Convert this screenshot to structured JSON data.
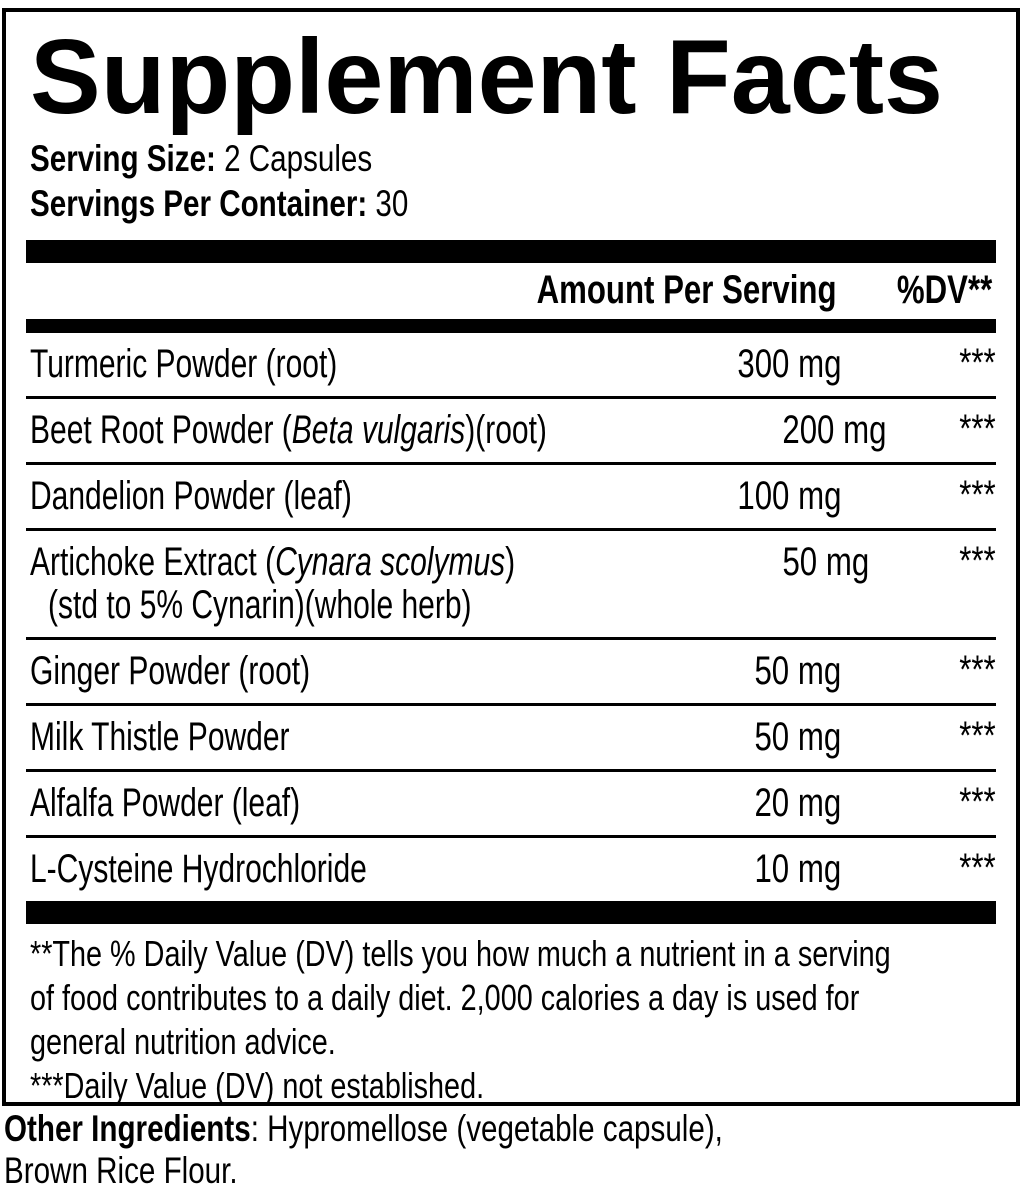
{
  "title": "Supplement Facts",
  "serving": {
    "size_label": "Serving Size:",
    "size_value": " 2 Capsules",
    "per_container_label": "Servings Per Container:",
    "per_container_value": " 30"
  },
  "table": {
    "amount_header": "Amount Per Serving",
    "dv_header": "%DV**",
    "rows": [
      {
        "name_pre": "Turmeric Powder (root)",
        "name_it": "",
        "name_post": "",
        "line2": "",
        "amount": "300 mg",
        "dv": "***"
      },
      {
        "name_pre": "Beet Root Powder (",
        "name_it": "Beta vulgaris",
        "name_post": ")(root)",
        "line2": "",
        "amount": "200 mg",
        "dv": "***"
      },
      {
        "name_pre": "Dandelion Powder (leaf)",
        "name_it": "",
        "name_post": "",
        "line2": "",
        "amount": "100 mg",
        "dv": "***"
      },
      {
        "name_pre": "Artichoke Extract (",
        "name_it": "Cynara scolymus",
        "name_post": ")",
        "line2": "(std to 5% Cynarin)(whole herb)",
        "amount": "50 mg",
        "dv": "***"
      },
      {
        "name_pre": "Ginger Powder (root)",
        "name_it": "",
        "name_post": "",
        "line2": "",
        "amount": "50 mg",
        "dv": "***"
      },
      {
        "name_pre": "Milk Thistle Powder",
        "name_it": "",
        "name_post": "",
        "line2": "",
        "amount": "50 mg",
        "dv": "***"
      },
      {
        "name_pre": "Alfalfa Powder (leaf)",
        "name_it": "",
        "name_post": "",
        "line2": "",
        "amount": "20 mg",
        "dv": "***"
      },
      {
        "name_pre": "L-Cysteine Hydrochloride",
        "name_it": "",
        "name_post": "",
        "line2": "",
        "amount": "10 mg",
        "dv": "***"
      }
    ]
  },
  "footnotes": {
    "lines": [
      "**The % Daily Value (DV) tells you how much a nutrient in a serving",
      "of food contributes to a daily diet. 2,000 calories a day is used for",
      "general nutrition advice.",
      "***Daily Value (DV) not established."
    ]
  },
  "other_ingredients": {
    "label": "Other Ingredients",
    "line1_rest": ": Hypromellose (vegetable capsule),",
    "line2": "Brown Rice Flour."
  },
  "colors": {
    "text": "#000000",
    "background": "#ffffff"
  }
}
